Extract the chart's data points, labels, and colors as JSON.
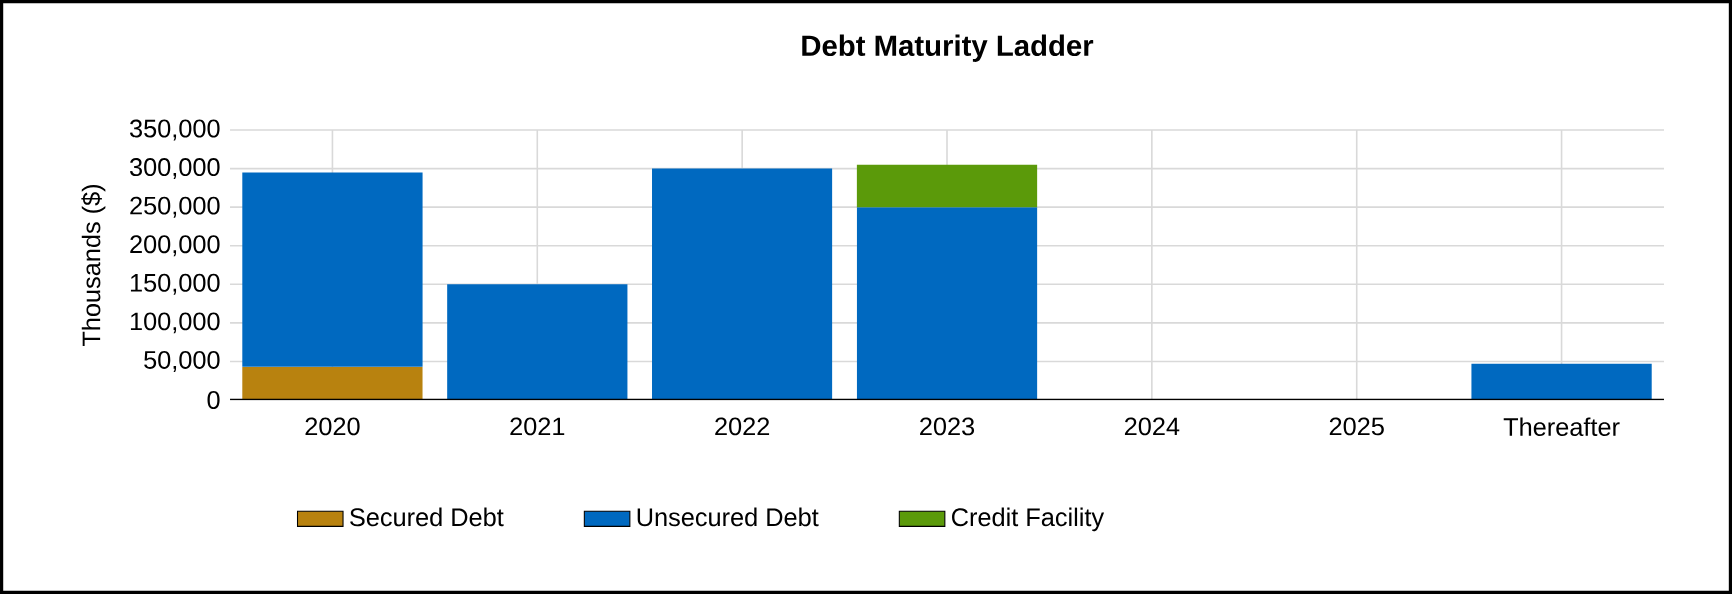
{
  "chart_data": {
    "type": "bar",
    "title": "Debt Maturity Ladder",
    "ylabel": "Thousands ($)",
    "categories": [
      "2020",
      "2021",
      "2022",
      "2023",
      "2024",
      "2025",
      "Thereafter"
    ],
    "series": [
      {
        "name": "Secured Debt",
        "color": "#b8820f",
        "values": [
          43000,
          null,
          null,
          null,
          null,
          null,
          null
        ]
      },
      {
        "name": "Unsecured Debt",
        "color": "#0069c0",
        "values": [
          252000,
          150000,
          300000,
          250000,
          null,
          null,
          47000
        ]
      },
      {
        "name": "Credit Facility",
        "color": "#5b9a0a",
        "values": [
          null,
          null,
          null,
          55000,
          null,
          null,
          null
        ]
      }
    ],
    "stacked": true,
    "ylim": [
      0,
      350000
    ],
    "yticks": [
      0,
      {
        "value": 50000,
        "label": "50,000"
      },
      {
        "value": 100000,
        "label": "100,000"
      },
      {
        "value": 150000,
        "label": "150,000"
      },
      {
        "value": 200000,
        "label": "200,000"
      },
      {
        "value": 250000,
        "label": "250,000"
      },
      {
        "value": 300000,
        "label": "300,000"
      },
      {
        "value": 350000,
        "label": "350,000"
      }
    ],
    "grid": true,
    "legend": "bottom"
  }
}
